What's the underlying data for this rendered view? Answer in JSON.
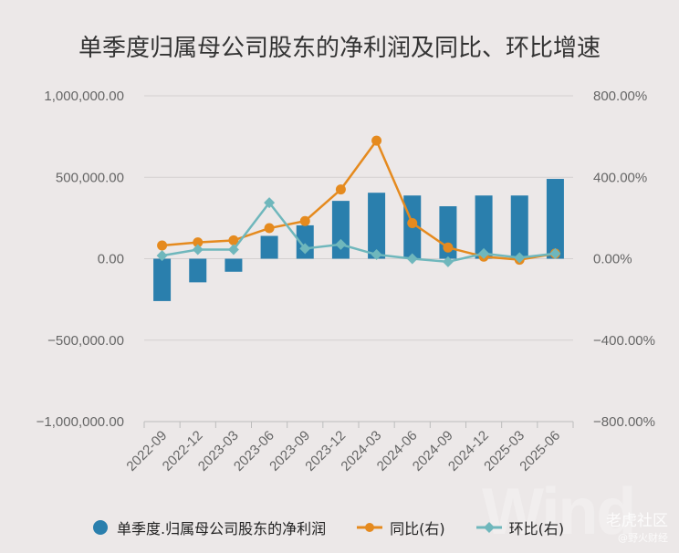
{
  "chart_data": {
    "type": "bar+line",
    "title": "单季度归属母公司股东的净利润及同比、环比增速",
    "categories": [
      "2022-09",
      "2022-12",
      "2023-03",
      "2023-06",
      "2023-09",
      "2023-12",
      "2024-03",
      "2024-06",
      "2024-09",
      "2024-12",
      "2025-03",
      "2025-06"
    ],
    "left_axis": {
      "ticks": [
        "1,000,000.00",
        "500,000.00",
        "0.00",
        "−500,000.00",
        "−1,000,000.00"
      ],
      "tick_values": [
        1000000,
        500000,
        0,
        -500000,
        -1000000
      ],
      "ylim": [
        -1000000,
        1000000
      ]
    },
    "right_axis": {
      "ticks": [
        "800.00%",
        "400.00%",
        "0.00%",
        "−400.00%",
        "−800.00%"
      ],
      "tick_values": [
        800,
        400,
        0,
        -400,
        -800
      ],
      "ylim": [
        -800,
        800
      ]
    },
    "series": [
      {
        "name": "单季度.归属母公司股东的净利润",
        "kind": "bar",
        "axis": "left",
        "color": "#2a7fad",
        "values": [
          -260000,
          -145000,
          -80000,
          140000,
          205000,
          355000,
          405000,
          388000,
          322000,
          388000,
          388000,
          490000
        ]
      },
      {
        "name": "同比(右)",
        "kind": "line",
        "axis": "right",
        "color": "#e58a1e",
        "marker": "circle",
        "values": [
          65,
          80,
          90,
          150,
          185,
          340,
          580,
          175,
          55,
          10,
          -5,
          25
        ]
      },
      {
        "name": "环比(右)",
        "kind": "line",
        "axis": "right",
        "color": "#6fb7bc",
        "marker": "diamond",
        "values": [
          15,
          45,
          45,
          275,
          50,
          70,
          20,
          0,
          -15,
          25,
          5,
          25
        ]
      }
    ],
    "grid": true,
    "legend_position": "bottom"
  },
  "watermark": {
    "wind": "Wind",
    "brand": "老虎社区",
    "sub": "@野火财经"
  }
}
